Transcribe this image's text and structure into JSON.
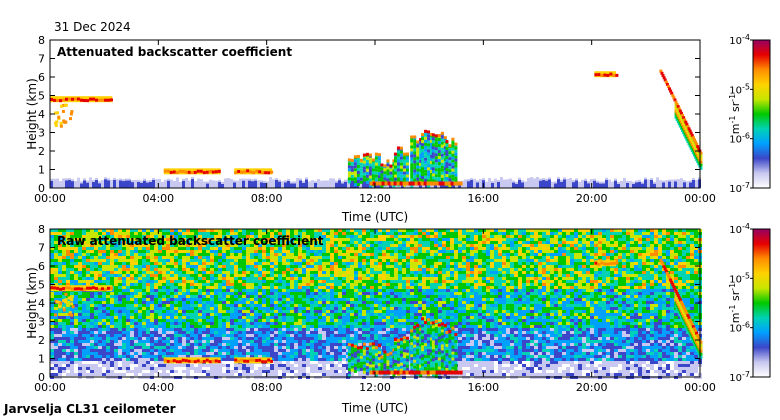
{
  "date": "31 Dec 2024",
  "footer": "Jarvselja CL31 ceilometer",
  "colorbar": {
    "top_label": "10",
    "top_exp": "-4",
    "ticks": [
      {
        "base": "10",
        "exp": "-4",
        "value": -4
      },
      {
        "base": "10",
        "exp": "-5",
        "value": -5
      },
      {
        "base": "10",
        "exp": "-6",
        "value": -6
      },
      {
        "base": "10",
        "exp": "-7",
        "value": -7
      }
    ],
    "unit_m": "m",
    "unit_m_exp": "-1",
    "unit_sr": "sr",
    "unit_sr_exp": "-1",
    "colors": [
      "#ffffff",
      "#c8c8f0",
      "#3c46c8",
      "#00a0ff",
      "#00d2b4",
      "#00c800",
      "#c8e600",
      "#ffd200",
      "#ff8c00",
      "#e60000",
      "#960064"
    ]
  },
  "chart_data": [
    {
      "type": "heatmap",
      "title": "Attenuated backscatter coefficient",
      "xlabel": "Time (UTC)",
      "ylabel": "Height (km)",
      "xlim": [
        0,
        24
      ],
      "ylim": [
        0,
        8
      ],
      "xticks": [
        "00:00",
        "04:00",
        "08:00",
        "12:00",
        "16:00",
        "20:00",
        "00:00"
      ],
      "yticks": [
        "0",
        "1",
        "2",
        "3",
        "4",
        "5",
        "6",
        "7",
        "8"
      ],
      "grid": false,
      "features": [
        {
          "name": "surface aerosol layer",
          "t": [
            0,
            24
          ],
          "h": [
            0,
            0.5
          ]
        },
        {
          "name": "cloud layer",
          "t": [
            0,
            2.3
          ],
          "h": [
            4.6,
            5.0
          ]
        },
        {
          "name": "cloud layer",
          "t": [
            4.2,
            6.3
          ],
          "h": [
            0.8,
            1.0
          ]
        },
        {
          "name": "cloud layer",
          "t": [
            6.8,
            8.2
          ],
          "h": [
            0.8,
            1.0
          ]
        },
        {
          "name": "cloud and precipitation",
          "t": [
            11.0,
            15.3
          ],
          "h": [
            0,
            3.4
          ]
        },
        {
          "name": "cloud layer",
          "t": [
            20.1,
            20.9
          ],
          "h": [
            6.0,
            6.3
          ]
        },
        {
          "name": "descending cloud",
          "t": [
            22.5,
            24
          ],
          "h": [
            1.7,
            6.5
          ]
        }
      ]
    },
    {
      "type": "heatmap",
      "title": "Raw attenuated backscatter coefficient",
      "xlabel": "Time (UTC)",
      "ylabel": "Height (km)",
      "xlim": [
        0,
        24
      ],
      "ylim": [
        0,
        8
      ],
      "xticks": [
        "00:00",
        "04:00",
        "08:00",
        "12:00",
        "16:00",
        "20:00",
        "00:00"
      ],
      "yticks": [
        "0",
        "1",
        "2",
        "3",
        "4",
        "5",
        "6",
        "7",
        "8"
      ],
      "grid": false,
      "features": [
        {
          "name": "background noise",
          "t": [
            0,
            24
          ],
          "h": [
            0,
            8
          ]
        },
        {
          "name": "cloud layer",
          "t": [
            0,
            2.3
          ],
          "h": [
            4.6,
            5.0
          ]
        },
        {
          "name": "cloud layer",
          "t": [
            4.2,
            6.3
          ],
          "h": [
            0.8,
            1.0
          ]
        },
        {
          "name": "cloud layer",
          "t": [
            6.8,
            8.2
          ],
          "h": [
            0.8,
            1.0
          ]
        },
        {
          "name": "cloud and precipitation",
          "t": [
            11.0,
            15.3
          ],
          "h": [
            0,
            3.4
          ]
        },
        {
          "name": "cloud layer",
          "t": [
            20.1,
            20.9
          ],
          "h": [
            6.0,
            6.3
          ]
        },
        {
          "name": "descending cloud",
          "t": [
            22.5,
            24
          ],
          "h": [
            1.7,
            6.5
          ]
        }
      ]
    }
  ]
}
